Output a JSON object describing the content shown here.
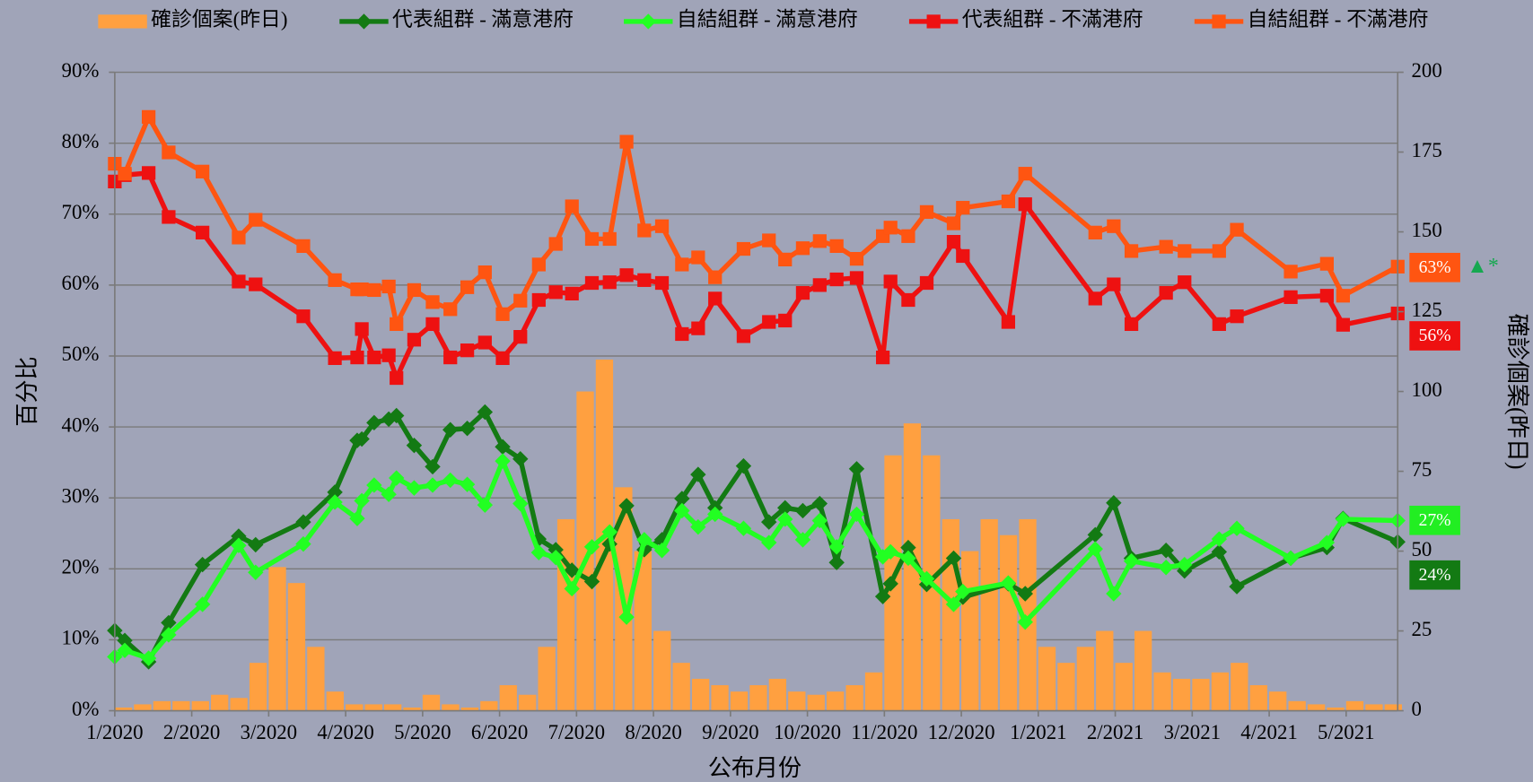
{
  "chart_data": {
    "type": "combo",
    "xlabel": "公布月份",
    "ylabel": "百分比",
    "y2label": "確診個案(昨日)",
    "xlim": [
      0,
      16.67
    ],
    "xticks": [
      {
        "value": 0,
        "label": "1/2020"
      },
      {
        "value": 1,
        "label": "2/2020"
      },
      {
        "value": 2,
        "label": "3/2020"
      },
      {
        "value": 3,
        "label": "4/2020"
      },
      {
        "value": 4,
        "label": "5/2020"
      },
      {
        "value": 5,
        "label": "6/2020"
      },
      {
        "value": 6,
        "label": "7/2020"
      },
      {
        "value": 7,
        "label": "8/2020"
      },
      {
        "value": 8,
        "label": "9/2020"
      },
      {
        "value": 9,
        "label": "10/2020"
      },
      {
        "value": 10,
        "label": "11/2020"
      },
      {
        "value": 11,
        "label": "12/2020"
      },
      {
        "value": 12,
        "label": "1/2021"
      },
      {
        "value": 13,
        "label": "2/2021"
      },
      {
        "value": 14,
        "label": "3/2021"
      },
      {
        "value": 15,
        "label": "4/2021"
      },
      {
        "value": 16,
        "label": "5/2021"
      }
    ],
    "ylim": [
      0,
      90
    ],
    "yticks": [
      {
        "value": 0,
        "label": "0%"
      },
      {
        "value": 10,
        "label": "10%"
      },
      {
        "value": 20,
        "label": "20%"
      },
      {
        "value": 30,
        "label": "30%"
      },
      {
        "value": 40,
        "label": "40%"
      },
      {
        "value": 50,
        "label": "50%"
      },
      {
        "value": 60,
        "label": "60%"
      },
      {
        "value": 70,
        "label": "70%"
      },
      {
        "value": 80,
        "label": "80%"
      },
      {
        "value": 90,
        "label": "90%"
      }
    ],
    "y2lim": [
      0,
      200
    ],
    "y2ticks": [
      0,
      25,
      50,
      75,
      100,
      125,
      150,
      175,
      200
    ],
    "grid": true,
    "x": [
      0,
      0.13,
      0.44,
      0.7,
      1.14,
      1.61,
      1.83,
      2.45,
      2.86,
      3.15,
      3.21,
      3.37,
      3.56,
      3.66,
      3.89,
      4.13,
      4.36,
      4.58,
      4.81,
      5.04,
      5.27,
      5.51,
      5.73,
      5.94,
      6.2,
      6.43,
      6.65,
      6.88,
      7.11,
      7.37,
      7.58,
      7.8,
      8.17,
      8.5,
      8.71,
      8.94,
      9.16,
      9.38,
      9.64,
      9.98,
      10.08,
      10.31,
      10.55,
      10.9,
      11.02,
      11.61,
      11.83,
      12.74,
      12.98,
      13.21,
      13.66,
      13.9,
      14.35,
      14.58,
      15.28,
      15.75,
      15.96,
      16.67
    ],
    "series": [
      {
        "name": "確診個案(昨日)",
        "type": "bar",
        "axis": "y2",
        "color": "#ffa040",
        "x": [
          0,
          0.25,
          0.5,
          0.75,
          1,
          1.25,
          1.5,
          1.75,
          2,
          2.25,
          2.5,
          2.75,
          3,
          3.25,
          3.5,
          3.75,
          4,
          4.25,
          4.5,
          4.75,
          5,
          5.25,
          5.5,
          5.75,
          6,
          6.25,
          6.5,
          6.75,
          7,
          7.25,
          7.5,
          7.75,
          8,
          8.25,
          8.5,
          8.75,
          9,
          9.25,
          9.5,
          9.75,
          10,
          10.25,
          10.5,
          10.75,
          11,
          11.25,
          11.5,
          11.75,
          12,
          12.25,
          12.5,
          12.75,
          13,
          13.25,
          13.5,
          13.75,
          14,
          14.25,
          14.5,
          14.75,
          15,
          15.25,
          15.5,
          15.75,
          16,
          16.25,
          16.5
        ],
        "values": [
          1,
          2,
          3,
          3,
          3,
          5,
          4,
          15,
          45,
          40,
          20,
          6,
          2,
          2,
          2,
          1,
          5,
          2,
          1,
          3,
          8,
          5,
          20,
          60,
          100,
          110,
          70,
          50,
          25,
          15,
          10,
          8,
          6,
          8,
          10,
          6,
          5,
          6,
          8,
          12,
          80,
          90,
          80,
          60,
          50,
          60,
          55,
          60,
          20,
          15,
          20,
          25,
          15,
          25,
          12,
          10,
          10,
          12,
          15,
          8,
          6,
          3,
          2,
          1,
          3,
          2,
          2
        ]
      },
      {
        "name": "代表組群 - 滿意港府",
        "type": "line",
        "marker": "diamond",
        "color": "#137a13",
        "values": [
          11.3,
          9.9,
          6.9,
          12.4,
          20.6,
          24.6,
          23.4,
          26.6,
          30.8,
          38.1,
          38.3,
          40.6,
          41.1,
          41.6,
          37.4,
          34.4,
          39.6,
          39.8,
          42.1,
          37.2,
          35.5,
          24.2,
          22.7,
          19.8,
          18.2,
          23.5,
          28.9,
          22.7,
          24.1,
          29.9,
          33.3,
          28.6,
          34.5,
          26.6,
          28.6,
          28.2,
          29.2,
          20.9,
          34.1,
          16.1,
          17.9,
          23.0,
          17.8,
          21.5,
          16.0,
          17.9,
          16.5,
          24.8,
          29.3,
          21.5,
          22.6,
          19.7,
          22.4,
          17.5,
          21.5,
          23.0,
          27.1,
          23.8
        ]
      },
      {
        "name": "自結組群 - 滿意港府",
        "type": "line",
        "marker": "diamond",
        "color": "#22ff22",
        "values": [
          7.6,
          8.5,
          7.4,
          10.7,
          15.0,
          23.3,
          19.5,
          23.5,
          29.4,
          27.1,
          29.6,
          31.8,
          30.5,
          32.8,
          31.4,
          31.8,
          32.5,
          31.9,
          29.0,
          35.2,
          29.2,
          22.3,
          21.6,
          17.2,
          23.1,
          25.2,
          13.2,
          24.1,
          22.6,
          28.2,
          25.9,
          27.7,
          25.7,
          23.7,
          27.0,
          24.1,
          26.8,
          23.1,
          27.7,
          21.7,
          22.4,
          21.5,
          18.6,
          15.0,
          16.8,
          18.0,
          12.5,
          22.8,
          16.5,
          21.1,
          20.2,
          20.6,
          24.2,
          25.7,
          21.5,
          23.7,
          27.0,
          26.8
        ]
      },
      {
        "name": "代表組群 - 不滿港府",
        "type": "line",
        "marker": "square",
        "color": "#ee1111",
        "values": [
          74.6,
          75.5,
          75.8,
          69.6,
          67.4,
          60.5,
          60.1,
          55.6,
          49.7,
          49.8,
          53.8,
          49.8,
          50.1,
          46.9,
          52.3,
          54.5,
          49.8,
          50.8,
          51.9,
          49.7,
          52.7,
          57.9,
          59.0,
          58.8,
          60.3,
          60.4,
          61.4,
          60.7,
          60.3,
          53.1,
          53.9,
          58.1,
          52.8,
          54.8,
          55.0,
          58.9,
          60.0,
          60.8,
          61.0,
          49.8,
          60.5,
          57.9,
          60.3,
          66.1,
          64.1,
          54.8,
          71.4,
          58.1,
          60.1,
          54.5,
          58.9,
          60.4,
          54.5,
          55.6,
          58.3,
          58.5,
          54.4,
          56.0
        ]
      },
      {
        "name": "自結組群 - 不滿港府",
        "type": "line",
        "marker": "square",
        "color": "#ff5511",
        "values": [
          77.1,
          75.7,
          83.7,
          78.7,
          76.0,
          66.7,
          69.2,
          65.5,
          60.7,
          59.4,
          59.4,
          59.3,
          59.8,
          54.5,
          59.3,
          57.6,
          56.6,
          59.7,
          61.8,
          55.9,
          57.8,
          62.9,
          65.8,
          71.1,
          66.5,
          66.5,
          80.2,
          67.7,
          68.3,
          62.9,
          63.9,
          61.1,
          65.1,
          66.3,
          63.6,
          65.2,
          66.2,
          65.5,
          63.7,
          66.9,
          68.1,
          66.9,
          70.3,
          68.7,
          70.9,
          71.8,
          75.7,
          67.4,
          68.3,
          64.8,
          65.4,
          64.8,
          64.8,
          67.8,
          61.9,
          63.0,
          58.5,
          62.6
        ]
      }
    ],
    "annotations": [
      {
        "text": "63%",
        "color": "#ff5511"
      },
      {
        "text": "56%",
        "color": "#ee1111"
      },
      {
        "text": "27%",
        "color": "#22ee22"
      },
      {
        "text": "24%",
        "color": "#137a13"
      },
      {
        "text": "▲*",
        "color": "#16a850"
      }
    ]
  }
}
